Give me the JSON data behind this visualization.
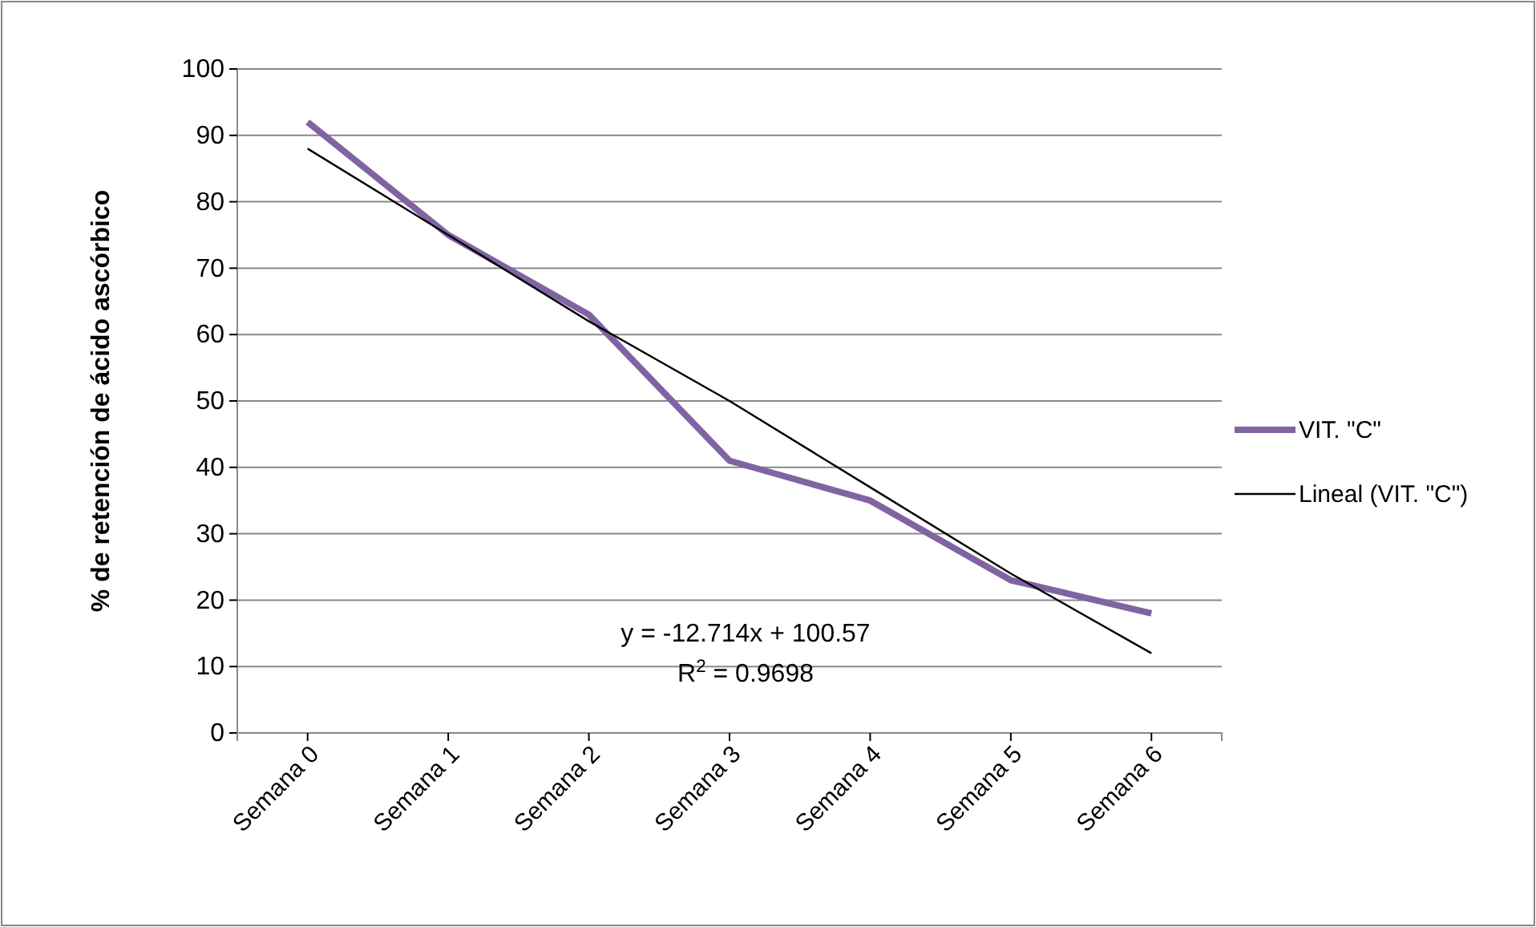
{
  "chart_data": {
    "type": "line",
    "ylabel": "% de retención de ácido ascórbico",
    "categories": [
      "Semana 0",
      "Semana 1",
      "Semana 2",
      "Semana 3",
      "Semana 4",
      "Semana 5",
      "Semana 6"
    ],
    "series": [
      {
        "name": "VIT. \"C\"",
        "color": "#8064a2",
        "values": [
          92,
          75,
          63,
          41,
          35,
          23,
          18
        ]
      },
      {
        "name": "Lineal (VIT. \"C\")",
        "color": "#000000",
        "values": [
          88,
          75,
          62,
          50,
          37,
          24,
          12
        ]
      }
    ],
    "ylim": [
      0,
      100
    ],
    "yticks": [
      0,
      10,
      20,
      30,
      40,
      50,
      60,
      70,
      80,
      90,
      100
    ],
    "grid": "y",
    "legend": "right",
    "marker": "none",
    "line_style": "solid",
    "annotations": [
      "y = -12.714x + 100.57",
      "R$^{2}$ = 0.9698"
    ]
  }
}
